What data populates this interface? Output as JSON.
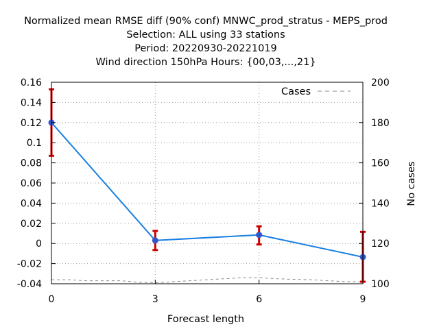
{
  "title_lines": [
    "Normalized mean RMSE diff (90% conf) MNWC_prod_stratus - MEPS_prod",
    "Selection: ALL using    33 stations",
    "Period: 20220930-20221019",
    "Wind direction 150hPa   Hours: {00,03,...,21}"
  ],
  "colors": {
    "line": "#1a7fe0",
    "marker": "#3355cc",
    "errorbar": "#cc0000",
    "cases": "#888888",
    "grid": "#999999"
  },
  "chart_data": {
    "type": "line",
    "xlabel": "Forecast length",
    "ylabel": "",
    "y2label": "No cases",
    "x": [
      0,
      3,
      6,
      9
    ],
    "xticks": [
      "0",
      "3",
      "6",
      "9"
    ],
    "xlim": [
      0,
      9
    ],
    "ylim": [
      -0.04,
      0.16
    ],
    "yticks": [
      "0.16",
      "0.14",
      "0.12",
      "0.1",
      "0.08",
      "0.06",
      "0.04",
      "0.02",
      "0",
      "-0.02",
      "-0.04"
    ],
    "y2lim": [
      100,
      200
    ],
    "y2ticks": [
      "200",
      "180",
      "160",
      "140",
      "120",
      "100"
    ],
    "grid": true,
    "legend_position": "top-right",
    "series": [
      {
        "values": [
          0.12,
          0.003,
          0.0085,
          -0.0135
        ],
        "err_low": [
          0.087,
          -0.0065,
          -0.001,
          -0.038
        ],
        "err_high": [
          0.153,
          0.0125,
          0.017,
          0.0115
        ]
      }
    ],
    "cases": {
      "name": "Cases",
      "x": [
        0,
        0.5,
        1,
        1.5,
        2,
        2.5,
        3,
        3.5,
        4,
        4.5,
        5,
        5.5,
        6,
        6.5,
        7,
        7.5,
        8,
        8.5,
        9
      ],
      "values": [
        102,
        102,
        101.5,
        101.5,
        101.5,
        100.8,
        100.5,
        101,
        101.5,
        102,
        102.5,
        103,
        103,
        102.5,
        102.2,
        102,
        101.5,
        101,
        101
      ]
    }
  }
}
